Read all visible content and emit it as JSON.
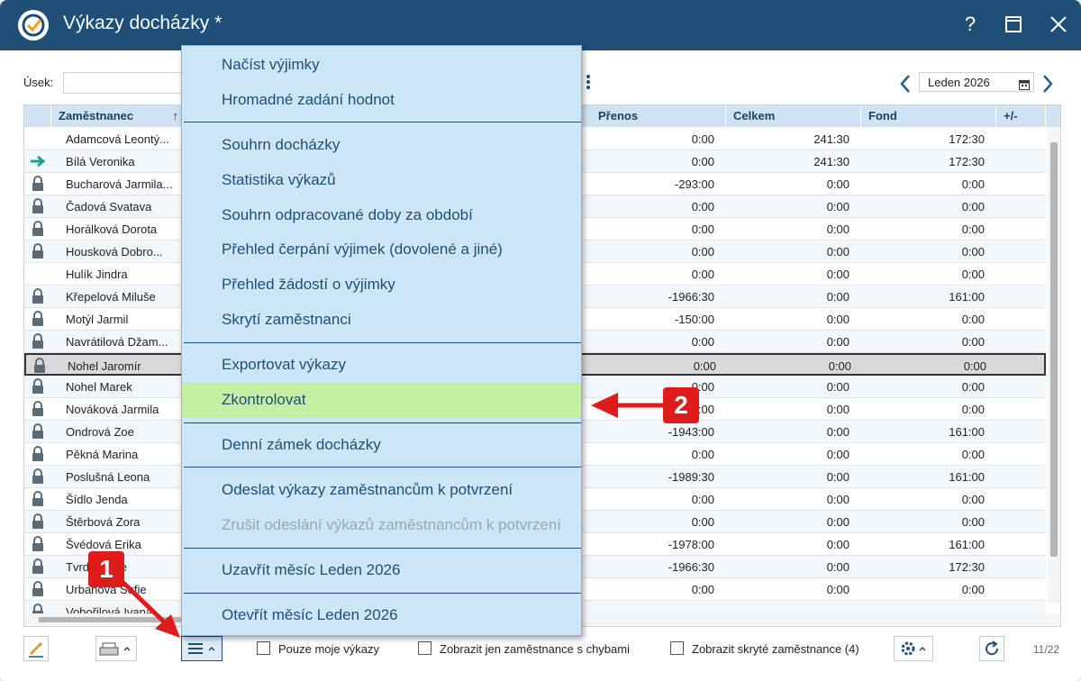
{
  "window": {
    "title": "Výkazy docházky *",
    "help": "?",
    "maximize_icon": "maximize-icon",
    "close_icon": "close-icon"
  },
  "filter": {
    "usek_label": "Úsek:",
    "usek_value": "",
    "month": "Leden 2026"
  },
  "table": {
    "columns": {
      "employee": "Zaměstnanec",
      "transfer": "Přenos",
      "total": "Celkem",
      "fund": "Fond",
      "diff": "+/-"
    },
    "rows": [
      {
        "icon": "",
        "name": "Adamcová Leontý...",
        "transfer": "0:00",
        "total": "241:30",
        "fund": "172:30"
      },
      {
        "icon": "arrow",
        "name": "Bílá Veronika",
        "transfer": "0:00",
        "total": "241:30",
        "fund": "172:30"
      },
      {
        "icon": "lock",
        "name": "Bucharová Jarmila...",
        "transfer": "-293:00",
        "total": "0:00",
        "fund": "0:00"
      },
      {
        "icon": "lock",
        "name": "Čadová Svatava",
        "transfer": "0:00",
        "total": "0:00",
        "fund": "0:00"
      },
      {
        "icon": "lock",
        "name": "Horálková Dorota",
        "transfer": "0:00",
        "total": "0:00",
        "fund": "0:00"
      },
      {
        "icon": "lock",
        "name": "Housková Dobro...",
        "transfer": "0:00",
        "total": "0:00",
        "fund": "0:00"
      },
      {
        "icon": "",
        "name": "Hulík Jindra",
        "transfer": "0:00",
        "total": "0:00",
        "fund": "0:00"
      },
      {
        "icon": "lock",
        "name": "Křepelová Miluše",
        "transfer": "-1966:30",
        "total": "0:00",
        "fund": "161:00"
      },
      {
        "icon": "lock",
        "name": "Motýl Jarmil",
        "transfer": "-150:00",
        "total": "0:00",
        "fund": "0:00"
      },
      {
        "icon": "lock",
        "name": "Navrátilová Džam...",
        "transfer": "0:00",
        "total": "0:00",
        "fund": "0:00"
      },
      {
        "icon": "lock",
        "name": "Nohel Jaromír",
        "transfer": "0:00",
        "total": "0:00",
        "fund": "0:00",
        "selected": true
      },
      {
        "icon": "lock",
        "name": "Nohel Marek",
        "transfer": "0:00",
        "total": "0:00",
        "fund": "0:00"
      },
      {
        "icon": "lock",
        "name": "Nováková Jarmila",
        "transfer": "0:00",
        "total": "0:00",
        "fund": "0:00"
      },
      {
        "icon": "lock",
        "name": "Ondrová Zoe",
        "transfer": "-1943:00",
        "total": "0:00",
        "fund": "161:00"
      },
      {
        "icon": "lock",
        "name": "Pěkná Marina",
        "transfer": "0:00",
        "total": "0:00",
        "fund": "0:00"
      },
      {
        "icon": "lock",
        "name": "Poslušná Leona",
        "transfer": "-1989:30",
        "total": "0:00",
        "fund": "161:00"
      },
      {
        "icon": "lock",
        "name": "Šídlo Jenda",
        "transfer": "0:00",
        "total": "0:00",
        "fund": "0:00"
      },
      {
        "icon": "lock",
        "name": "Štěrbová Zora",
        "transfer": "0:00",
        "total": "0:00",
        "fund": "0:00"
      },
      {
        "icon": "lock",
        "name": "Švédová Erika",
        "transfer": "-1978:00",
        "total": "0:00",
        "fund": "161:00"
      },
      {
        "icon": "lock",
        "name": "Tvrdá Lucie",
        "transfer": "-1966:30",
        "total": "0:00",
        "fund": "172:30"
      },
      {
        "icon": "lock",
        "name": "Urbanová Sofie",
        "transfer": "0:00",
        "total": "0:00",
        "fund": "0:00"
      },
      {
        "icon": "lock",
        "name": "Vobořilová Ivana",
        "transfer": "",
        "total": "",
        "fund": ""
      }
    ]
  },
  "menu": {
    "items": [
      "Načíst výjimky",
      "Hromadné zadání hodnot",
      "Souhrn docházky",
      "Statistika výkazů",
      "Souhrn odpracované doby za období",
      "Přehled čerpání výjimek (dovolené a jiné)",
      "Přehled žádostí o výjimky",
      "Skrytí zaměstnanci",
      "Exportovat výkazy",
      "Zkontrolovat",
      "Denní zámek docházky",
      "Odeslat výkazy zaměstnancům k potvrzení",
      "Zrušit odeslání výkazů zaměstnancům k potvrzení",
      "Uzavřít měsíc Leden 2026",
      "Otevřít měsíc Leden 2026"
    ]
  },
  "bottom": {
    "only_mine": "Pouze moje výkazy",
    "only_errors": "Zobrazit jen zaměstnance s chybami",
    "show_hidden": "Zobrazit skryté zaměstnance (4)",
    "pager": "11/22"
  },
  "annotations": {
    "badge1": "1",
    "badge2": "2"
  },
  "colors": {
    "titlebar": "#1f4e77",
    "header": "#cfe3f2",
    "menu": "#cde6f7",
    "highlight": "#c5f0a4",
    "annotation": "#e01b1b"
  }
}
